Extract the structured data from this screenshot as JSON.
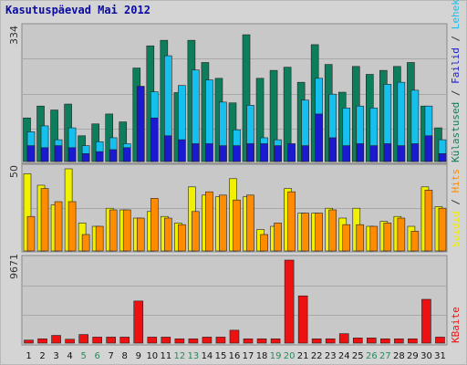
{
  "title": "Kasutuspäevad Mai 2012",
  "colors": {
    "background": "#d4d4d4",
    "panel": "#c8c8c8",
    "grid": "#a8a8a8",
    "visits_bar": "#0e7d5c",
    "pages_bar": "#16c0ee",
    "files_bar": "#1a1ad0",
    "sites_bar": "#f0f000",
    "hits_bar": "#ff8c00",
    "kbytes_bar": "#ee1111",
    "weekday_label": "#111111",
    "weekend_label": "#2a8a5a"
  },
  "chart_data": [
    {
      "type": "bar",
      "ymax_label": "334",
      "legend": [
        {
          "text": "Külastused",
          "color": "#0e7d5c"
        },
        {
          "text": "Failid",
          "color": "#1a1ad0"
        },
        {
          "text": "Leheküljed",
          "color": "#16c0ee"
        }
      ],
      "legend_separator": " / ",
      "ylim": [
        0,
        334
      ],
      "series": [
        {
          "name": "Külastused",
          "values": [
            110,
            140,
            130,
            145,
            65,
            95,
            120,
            100,
            236,
            292,
            306,
            174,
            306,
            250,
            210,
            148,
            320,
            210,
            230,
            238,
            200,
            295,
            245,
            175,
            240,
            220,
            230,
            240,
            250,
            140,
            85
          ]
        },
        {
          "name": "Failid",
          "values": [
            40,
            35,
            40,
            35,
            20,
            25,
            30,
            35,
            190,
            110,
            65,
            55,
            45,
            45,
            40,
            40,
            45,
            45,
            40,
            45,
            40,
            120,
            60,
            40,
            45,
            40,
            45,
            40,
            45,
            65,
            20
          ]
        },
        {
          "name": "Leheküljed",
          "values": [
            75,
            90,
            55,
            85,
            40,
            50,
            60,
            45,
            157,
            176,
            267,
            192,
            231,
            206,
            150,
            80,
            142,
            60,
            55,
            30,
            155,
            210,
            170,
            135,
            140,
            135,
            195,
            200,
            180,
            140,
            55
          ]
        }
      ]
    },
    {
      "type": "bar",
      "ymax_label": "50",
      "legend": [
        {
          "text": "Saidid",
          "color": "#f0f000"
        },
        {
          "text": "Hits",
          "color": "#ff8c00"
        }
      ],
      "legend_separator": " / ",
      "ylim": [
        0,
        50
      ],
      "series": [
        {
          "name": "Saidid",
          "values": [
            47,
            40,
            28,
            50,
            17,
            15,
            26,
            25,
            20,
            24,
            21,
            17,
            39,
            34,
            33,
            44,
            33,
            13,
            15,
            38,
            23,
            23,
            26,
            20,
            26,
            15,
            18,
            21,
            15,
            39,
            27
          ]
        },
        {
          "name": "Hits",
          "values": [
            21,
            38,
            30,
            30,
            10,
            15,
            25,
            25,
            20,
            32,
            20,
            16,
            24,
            36,
            34,
            31,
            34,
            10,
            17,
            36,
            23,
            23,
            25,
            16,
            16,
            15,
            17,
            20,
            12,
            37,
            26
          ]
        }
      ]
    },
    {
      "type": "bar",
      "ymax_label": "9671",
      "legend": [
        {
          "text": "KBaite",
          "color": "#ee1111"
        }
      ],
      "legend_separator": "",
      "ylim": [
        0,
        9671
      ],
      "series": [
        {
          "name": "KBaite",
          "values": [
            350,
            500,
            900,
            450,
            1000,
            700,
            700,
            700,
            4900,
            700,
            700,
            500,
            500,
            700,
            700,
            1500,
            500,
            500,
            500,
            9671,
            5500,
            500,
            500,
            1100,
            600,
            600,
            500,
            500,
            500,
            5100,
            700
          ]
        }
      ]
    }
  ],
  "days": [
    "1",
    "2",
    "3",
    "4",
    "5",
    "6",
    "7",
    "8",
    "9",
    "10",
    "11",
    "12",
    "13",
    "14",
    "15",
    "16",
    "17",
    "18",
    "19",
    "20",
    "21",
    "22",
    "23",
    "24",
    "25",
    "26",
    "27",
    "28",
    "29",
    "30",
    "31"
  ],
  "weekend_days": [
    "5",
    "6",
    "12",
    "13",
    "19",
    "20",
    "26",
    "27"
  ]
}
